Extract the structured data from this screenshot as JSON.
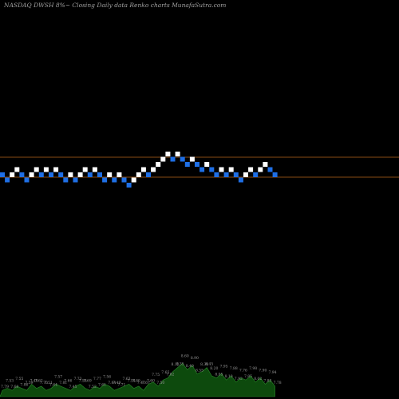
{
  "chart_data": {
    "type": "renko",
    "title": "NASDAQ DWSH 8%~  Closing Daily data  Renko  charts MunafaSutra.com",
    "y_reference_lines": [
      40,
      42
    ],
    "ylim": [
      34.5,
      49.5
    ],
    "bricks": [
      {
        "value": 42,
        "direction": "down"
      },
      {
        "value": 41,
        "direction": "down"
      },
      {
        "value": 42,
        "direction": "up"
      },
      {
        "value": 43,
        "direction": "up"
      },
      {
        "value": 42,
        "direction": "down"
      },
      {
        "value": 41,
        "direction": "down"
      },
      {
        "value": 42,
        "direction": "up"
      },
      {
        "value": 43,
        "direction": "up"
      },
      {
        "value": 42,
        "direction": "down"
      },
      {
        "value": 43,
        "direction": "up"
      },
      {
        "value": 42,
        "direction": "down"
      },
      {
        "value": 43,
        "direction": "up"
      },
      {
        "value": 42,
        "direction": "down"
      },
      {
        "value": 41,
        "direction": "down"
      },
      {
        "value": 42,
        "direction": "up"
      },
      {
        "value": 41,
        "direction": "down"
      },
      {
        "value": 42,
        "direction": "up"
      },
      {
        "value": 43,
        "direction": "up"
      },
      {
        "value": 42,
        "direction": "down"
      },
      {
        "value": 43,
        "direction": "up"
      },
      {
        "value": 42,
        "direction": "down"
      },
      {
        "value": 41,
        "direction": "down"
      },
      {
        "value": 42,
        "direction": "up"
      },
      {
        "value": 41,
        "direction": "down"
      },
      {
        "value": 42,
        "direction": "up"
      },
      {
        "value": 41,
        "direction": "down"
      },
      {
        "value": 40,
        "direction": "down"
      },
      {
        "value": 41,
        "direction": "up"
      },
      {
        "value": 42,
        "direction": "up"
      },
      {
        "value": 43,
        "direction": "up"
      },
      {
        "value": 42,
        "direction": "down"
      },
      {
        "value": 43,
        "direction": "up"
      },
      {
        "value": 44,
        "direction": "up"
      },
      {
        "value": 45,
        "direction": "up"
      },
      {
        "value": 46,
        "direction": "up"
      },
      {
        "value": 45,
        "direction": "down"
      },
      {
        "value": 46,
        "direction": "up"
      },
      {
        "value": 45,
        "direction": "down"
      },
      {
        "value": 44,
        "direction": "down"
      },
      {
        "value": 45,
        "direction": "up"
      },
      {
        "value": 44,
        "direction": "down"
      },
      {
        "value": 43,
        "direction": "down"
      },
      {
        "value": 44,
        "direction": "up"
      },
      {
        "value": 43,
        "direction": "down"
      },
      {
        "value": 42,
        "direction": "down"
      },
      {
        "value": 43,
        "direction": "up"
      },
      {
        "value": 42,
        "direction": "down"
      },
      {
        "value": 43,
        "direction": "up"
      },
      {
        "value": 42,
        "direction": "down"
      },
      {
        "value": 41,
        "direction": "down"
      },
      {
        "value": 42,
        "direction": "up"
      },
      {
        "value": 43,
        "direction": "up"
      },
      {
        "value": 42,
        "direction": "down"
      },
      {
        "value": 43,
        "direction": "up"
      },
      {
        "value": 44,
        "direction": "up"
      },
      {
        "value": 43,
        "direction": "down"
      },
      {
        "value": 42,
        "direction": "down"
      }
    ],
    "bottom_labels": [
      "7.79",
      "7.53",
      "7.68",
      "7.55",
      "7.86",
      "7.59",
      "7.48",
      "7.62",
      "7.70",
      "7.51",
      "7.64",
      "7.57",
      "7.81",
      "7.66",
      "7.45",
      "7.73",
      "7.58",
      "7.69",
      "7.52",
      "7.77",
      "7.61",
      "7.56",
      "7.84",
      "7.49",
      "7.71",
      "7.63",
      "7.54",
      "7.80",
      "7.47",
      "7.67",
      "7.60",
      "7.75",
      "7.50",
      "7.65",
      "7.82",
      "8.12",
      "8.35",
      "8.60",
      "8.40",
      "8.90",
      "8.55",
      "8.30",
      "8.45",
      "8.20",
      "8.05",
      "7.95",
      "8.10",
      "7.88",
      "7.92",
      "7.76",
      "7.85",
      "7.98",
      "8.02",
      "7.90",
      "7.83",
      "7.94",
      "7.78"
    ],
    "colors": {
      "background": "#000000",
      "up_brick": "#ffffff",
      "down_brick": "#1f6fe5",
      "reference_line": "#b5651d",
      "title": "#a0a0a0",
      "volume_fill": "#0d4a0d",
      "volume_stroke": "#2a8a2a",
      "label": "#9a9a9a"
    },
    "volume": [
      3,
      4,
      3,
      5,
      4,
      3,
      6,
      4,
      5,
      3,
      4,
      6,
      5,
      4,
      3,
      5,
      6,
      4,
      3,
      5,
      4,
      6,
      5,
      3,
      4,
      5,
      6,
      4,
      5,
      3,
      6,
      7,
      5,
      8,
      9,
      12,
      14,
      16,
      13,
      15,
      11,
      12,
      14,
      10,
      9,
      11,
      8,
      10,
      7,
      9,
      8,
      10,
      7,
      9,
      6,
      8,
      5
    ]
  }
}
